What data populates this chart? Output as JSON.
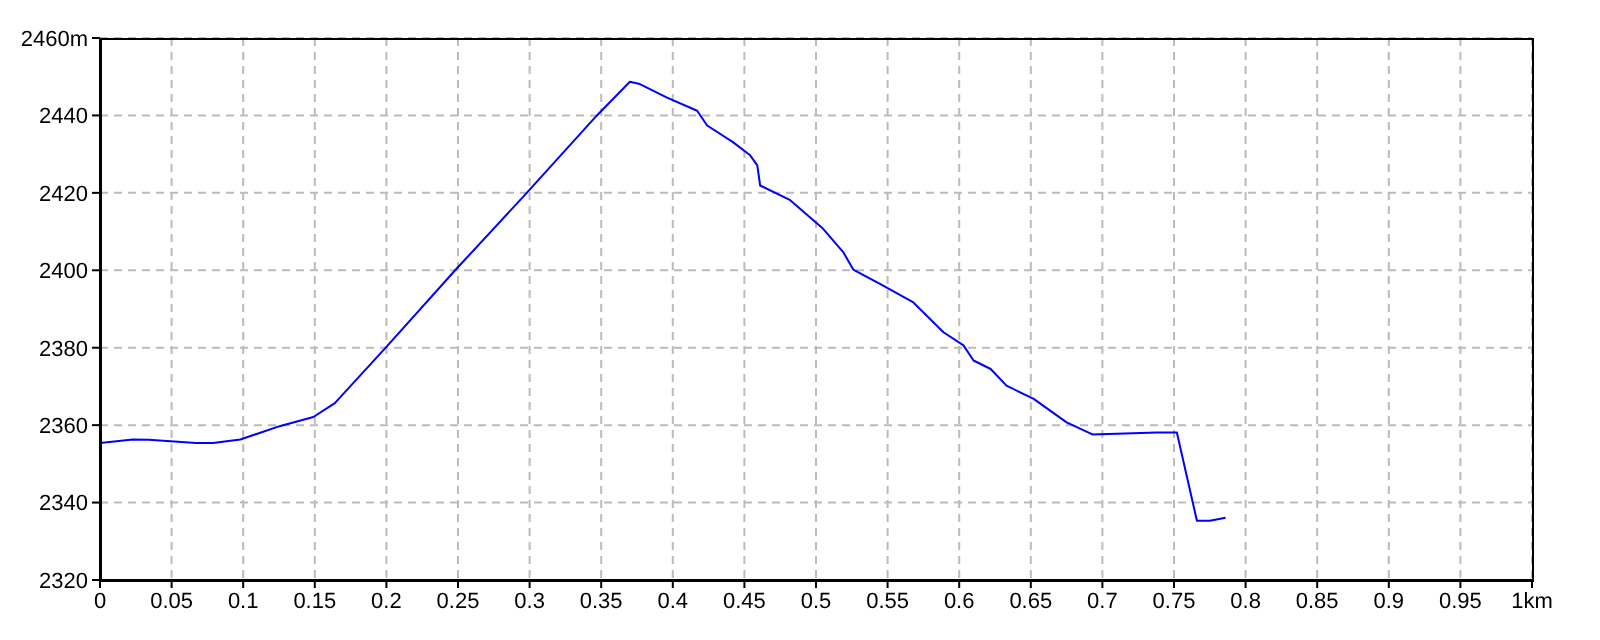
{
  "chart_data": {
    "type": "line",
    "x": [
      0,
      0.023,
      0.034,
      0.067,
      0.079,
      0.098,
      0.126,
      0.149,
      0.164,
      0.2,
      0.248,
      0.298,
      0.347,
      0.37,
      0.377,
      0.396,
      0.417,
      0.424,
      0.442,
      0.454,
      0.459,
      0.461,
      0.482,
      0.505,
      0.519,
      0.526,
      0.545,
      0.568,
      0.589,
      0.603,
      0.61,
      0.622,
      0.633,
      0.652,
      0.675,
      0.693,
      0.71,
      0.738,
      0.752,
      0.766,
      0.775,
      0.786
    ],
    "series": [
      {
        "color": "#0000ff",
        "values": [
          2355.4,
          2356.3,
          2356.2,
          2355.4,
          2355.4,
          2356.3,
          2359.8,
          2362.1,
          2365.7,
          2380.2,
          2400,
          2420,
          2440,
          2448.7,
          2448.1,
          2444.6,
          2441.2,
          2437.4,
          2433.1,
          2429.7,
          2427.1,
          2421.9,
          2418.1,
          2410.7,
          2404.7,
          2400.2,
          2396.4,
          2391.7,
          2384,
          2380.6,
          2376.7,
          2374.5,
          2370.2,
          2366.8,
          2360.7,
          2357.6,
          2357.8,
          2358.1,
          2358.1,
          2335.3,
          2335.3,
          2336.1
        ]
      }
    ],
    "xlim": [
      0,
      1
    ],
    "xticks": [
      0,
      0.05,
      0.1,
      0.15,
      0.2,
      0.25,
      0.3,
      0.35,
      0.4,
      0.45,
      0.5,
      0.55,
      0.6,
      0.65,
      0.7,
      0.75,
      0.8,
      0.85,
      0.9,
      0.95,
      {
        "value": 1,
        "label": "1km"
      }
    ],
    "ylim": [
      2320,
      2460
    ],
    "yticks": [
      2320,
      2340,
      2360,
      2380,
      2400,
      2420,
      2440,
      {
        "value": 2460,
        "label": "2460m"
      }
    ],
    "grid": true,
    "marker": "none",
    "line_style": "solid"
  }
}
